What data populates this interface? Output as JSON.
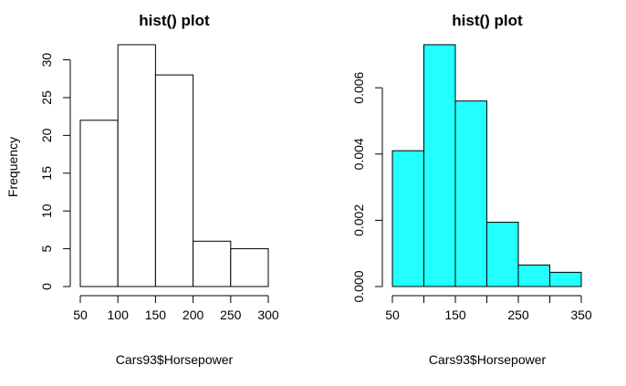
{
  "chart_data": [
    {
      "type": "bar",
      "title": "hist() plot",
      "xlabel": "Cars93$Horsepower",
      "ylabel": "Frequency",
      "bins": [
        [
          50,
          100
        ],
        [
          100,
          150
        ],
        [
          150,
          200
        ],
        [
          200,
          250
        ],
        [
          250,
          300
        ]
      ],
      "values": [
        22,
        32,
        28,
        6,
        5
      ],
      "xlim": [
        50,
        300
      ],
      "ylim": [
        0,
        32
      ],
      "x_ticks": [
        50,
        100,
        150,
        200,
        250,
        300
      ],
      "x_tick_labels": [
        "50",
        "100",
        "150",
        "200",
        "250",
        "300"
      ],
      "y_ticks": [
        0,
        5,
        10,
        15,
        20,
        25,
        30
      ],
      "y_tick_labels": [
        "0",
        "5",
        "10",
        "15",
        "20",
        "25",
        "30"
      ],
      "fill": "#ffffff",
      "grid": false
    },
    {
      "type": "bar",
      "title": "hist() plot",
      "xlabel": "Cars93$Horsepower",
      "ylabel": "",
      "bins": [
        [
          50,
          100
        ],
        [
          100,
          150
        ],
        [
          150,
          200
        ],
        [
          200,
          250
        ],
        [
          250,
          300
        ],
        [
          300,
          350
        ]
      ],
      "values": [
        0.0041,
        0.0073,
        0.0056,
        0.00194,
        0.00065,
        0.00043
      ],
      "xlim": [
        50,
        350
      ],
      "ylim": [
        0,
        0.0073
      ],
      "x_ticks": [
        50,
        150,
        250,
        350
      ],
      "x_tick_labels": [
        "50",
        "150",
        "250",
        "350"
      ],
      "x_minor_ticks": [
        100,
        200,
        300
      ],
      "y_ticks": [
        0,
        0.002,
        0.004,
        0.006
      ],
      "y_tick_labels": [
        "0.000",
        "0.002",
        "0.004",
        "0.006"
      ],
      "fill": "#22ffff",
      "grid": false
    }
  ]
}
